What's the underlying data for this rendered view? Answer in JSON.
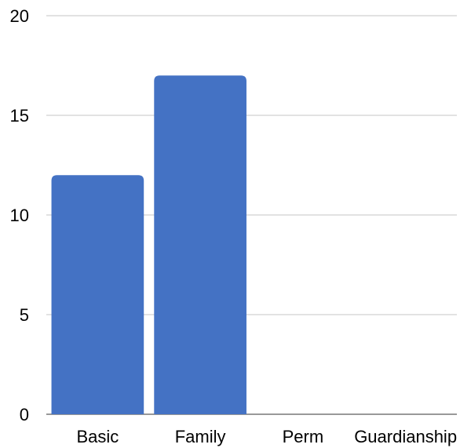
{
  "chart_data": {
    "type": "bar",
    "categories": [
      "Basic",
      "Family",
      "Perm",
      "Guardianship"
    ],
    "values": [
      12,
      17,
      0,
      0
    ],
    "title": "",
    "xlabel": "",
    "ylabel": "",
    "ylim": [
      0,
      20
    ],
    "yticks": [
      0,
      5,
      10,
      15,
      20
    ],
    "grid": true,
    "legend": "none",
    "bar_color": "#4472c4"
  }
}
